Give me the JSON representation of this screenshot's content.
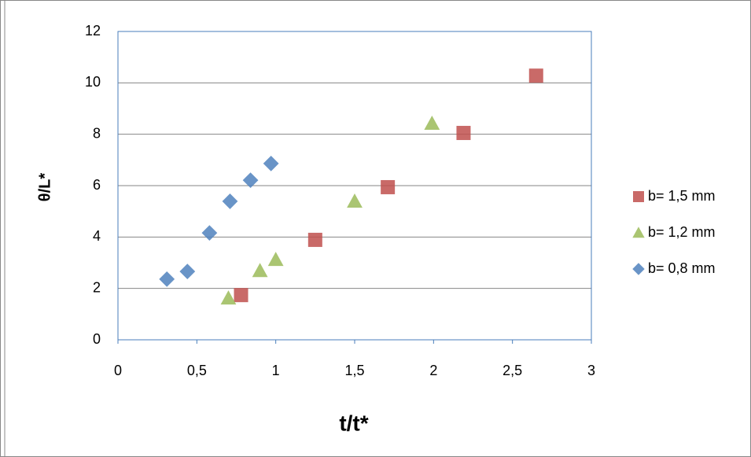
{
  "chart_data": {
    "type": "scatter",
    "x_label": "t/t*",
    "y_label": "θ/L*",
    "xlim": [
      0,
      3
    ],
    "ylim": [
      0,
      12
    ],
    "xticks": [
      0,
      {
        "value": 0.5,
        "label": "0,5"
      },
      1,
      {
        "value": 1.5,
        "label": "1,5"
      },
      2,
      {
        "value": 2.5,
        "label": "2,5"
      },
      3
    ],
    "yticks": [
      0,
      2,
      4,
      6,
      8,
      10,
      12
    ],
    "grid": true,
    "legend": "right",
    "series": [
      {
        "name": "b= 1,5 mm",
        "color": "#c0504d",
        "marker": "square",
        "x": [
          0.78,
          1.25,
          1.71,
          2.19,
          2.65
        ],
        "values": [
          1.74,
          3.89,
          5.94,
          8.05,
          10.28
        ]
      },
      {
        "name": "b= 1,2 mm",
        "color": "#9bbb59",
        "marker": "triangle",
        "x": [
          0.7,
          0.9,
          1.0,
          1.5,
          1.99
        ],
        "values": [
          1.62,
          2.69,
          3.12,
          5.39,
          8.42
        ]
      },
      {
        "name": "b= 0,8 mm",
        "color": "#4f81bd",
        "marker": "diamond",
        "x": [
          0.31,
          0.44,
          0.58,
          0.71,
          0.84,
          0.97
        ],
        "values": [
          2.36,
          2.66,
          4.16,
          5.39,
          6.21,
          6.86
        ]
      }
    ]
  }
}
